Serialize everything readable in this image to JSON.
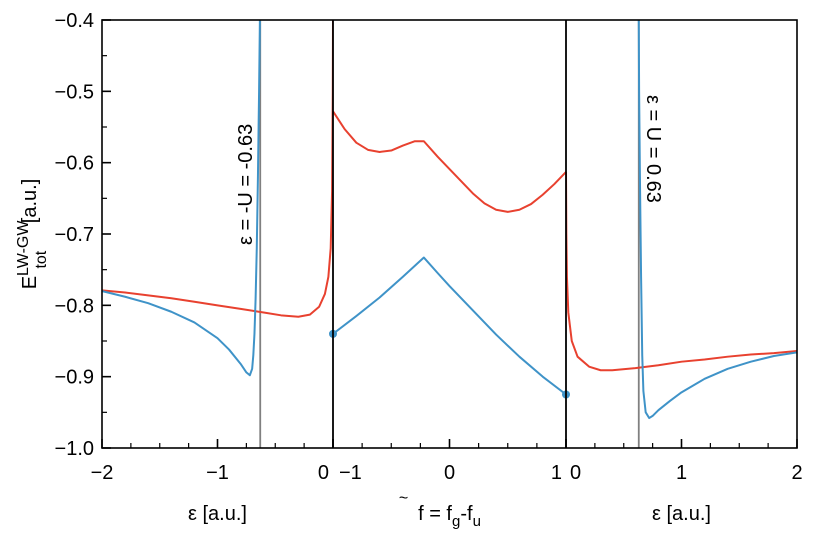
{
  "chart_data": {
    "type": "line",
    "ylabel": {
      "main": "E",
      "sup": "LW-GW",
      "sub": "tot",
      "unit": " [a.u.]"
    },
    "ylim": [
      -1.0,
      -0.4
    ],
    "y_ticks": [
      "−0.4",
      "−0.5",
      "−0.6",
      "−0.7",
      "−0.8",
      "−0.9",
      "−1.0"
    ],
    "y_tick_values": [
      -0.4,
      -0.5,
      -0.6,
      -0.7,
      -0.8,
      -0.9,
      -1.0
    ],
    "grid": false,
    "legend": "none",
    "colors": {
      "red": "#e8412f",
      "blue": "#3f93c8",
      "vline": "#808080",
      "frame": "#000000"
    },
    "panels": [
      {
        "id": "left",
        "xlim": [
          -2,
          0
        ],
        "x_tick_values": [
          -2,
          -1,
          0
        ],
        "x_tick_labels": [
          "−2",
          "−1",
          "0"
        ],
        "xlabel": "ε [a.u.]",
        "vline_x": -0.63,
        "annotation": "ε = -U = -0.63",
        "series": [
          {
            "color": "red",
            "points": [
              [
                -2.0,
                -0.779
              ],
              [
                -1.8,
                -0.782
              ],
              [
                -1.6,
                -0.786
              ],
              [
                -1.4,
                -0.79
              ],
              [
                -1.2,
                -0.795
              ],
              [
                -1.0,
                -0.8
              ],
              [
                -0.8,
                -0.805
              ],
              [
                -0.6,
                -0.81
              ],
              [
                -0.45,
                -0.814
              ],
              [
                -0.3,
                -0.816
              ],
              [
                -0.2,
                -0.813
              ],
              [
                -0.12,
                -0.802
              ],
              [
                -0.07,
                -0.784
              ],
              [
                -0.04,
                -0.76
              ],
              [
                -0.02,
                -0.72
              ],
              [
                -0.008,
                -0.64
              ],
              [
                -0.002,
                -0.5
              ],
              [
                0.0,
                -0.4
              ]
            ]
          },
          {
            "color": "blue",
            "points": [
              [
                -2.0,
                -0.78
              ],
              [
                -1.8,
                -0.788
              ],
              [
                -1.6,
                -0.797
              ],
              [
                -1.4,
                -0.809
              ],
              [
                -1.2,
                -0.824
              ],
              [
                -1.0,
                -0.846
              ],
              [
                -0.9,
                -0.862
              ],
              [
                -0.8,
                -0.882
              ],
              [
                -0.75,
                -0.894
              ],
              [
                -0.72,
                -0.898
              ],
              [
                -0.7,
                -0.889
              ],
              [
                -0.69,
                -0.87
              ],
              [
                -0.68,
                -0.84
              ],
              [
                -0.67,
                -0.79
              ],
              [
                -0.66,
                -0.72
              ],
              [
                -0.65,
                -0.62
              ],
              [
                -0.64,
                -0.5
              ],
              [
                -0.633,
                -0.4
              ]
            ]
          }
        ]
      },
      {
        "id": "middle",
        "xlim": [
          -1,
          1
        ],
        "x_tick_values": [
          -1,
          0,
          1
        ],
        "x_tick_labels": [
          "−1",
          "0",
          "1"
        ],
        "xlabel": {
          "main": "f",
          "accent": "~",
          "eq": " = f",
          "sub1": "g",
          "minus": "-f",
          "sub2": "u"
        },
        "series": [
          {
            "color": "red",
            "points": [
              [
                -1.0,
                -0.528
              ],
              [
                -0.9,
                -0.553
              ],
              [
                -0.8,
                -0.572
              ],
              [
                -0.7,
                -0.582
              ],
              [
                -0.6,
                -0.585
              ],
              [
                -0.5,
                -0.583
              ],
              [
                -0.4,
                -0.576
              ],
              [
                -0.3,
                -0.57
              ],
              [
                -0.22,
                -0.57
              ],
              [
                -0.1,
                -0.592
              ],
              [
                0.0,
                -0.609
              ],
              [
                0.1,
                -0.626
              ],
              [
                0.2,
                -0.643
              ],
              [
                0.3,
                -0.657
              ],
              [
                0.4,
                -0.666
              ],
              [
                0.5,
                -0.669
              ],
              [
                0.6,
                -0.666
              ],
              [
                0.7,
                -0.658
              ],
              [
                0.8,
                -0.645
              ],
              [
                0.9,
                -0.63
              ],
              [
                1.0,
                -0.613
              ]
            ]
          },
          {
            "color": "blue",
            "points": [
              [
                -1.0,
                -0.84
              ],
              [
                -0.8,
                -0.815
              ],
              [
                -0.6,
                -0.789
              ],
              [
                -0.4,
                -0.76
              ],
              [
                -0.22,
                -0.733
              ],
              [
                -0.1,
                -0.755
              ],
              [
                0.0,
                -0.773
              ],
              [
                0.2,
                -0.807
              ],
              [
                0.4,
                -0.841
              ],
              [
                0.6,
                -0.872
              ],
              [
                0.8,
                -0.9
              ],
              [
                1.0,
                -0.925
              ]
            ]
          }
        ],
        "markers": [
          {
            "x": -1.0,
            "y": -0.84,
            "color": "blue"
          },
          {
            "x": 1.0,
            "y": -0.925,
            "color": "blue"
          }
        ]
      },
      {
        "id": "right",
        "xlim": [
          0,
          2
        ],
        "x_tick_values": [
          0,
          1,
          2
        ],
        "x_tick_labels": [
          "0",
          "1",
          "2"
        ],
        "xlabel": "ε [a.u.]",
        "vline_x": 0.63,
        "annotation": "ε = U = 0.63",
        "series": [
          {
            "color": "red",
            "points": [
              [
                0.0,
                -0.613
              ],
              [
                0.003,
                -0.7
              ],
              [
                0.008,
                -0.76
              ],
              [
                0.02,
                -0.81
              ],
              [
                0.05,
                -0.85
              ],
              [
                0.1,
                -0.872
              ],
              [
                0.2,
                -0.886
              ],
              [
                0.3,
                -0.891
              ],
              [
                0.4,
                -0.891
              ],
              [
                0.6,
                -0.888
              ],
              [
                0.8,
                -0.884
              ],
              [
                1.0,
                -0.879
              ],
              [
                1.2,
                -0.876
              ],
              [
                1.4,
                -0.872
              ],
              [
                1.6,
                -0.869
              ],
              [
                1.8,
                -0.867
              ],
              [
                2.0,
                -0.864
              ]
            ]
          },
          {
            "color": "blue",
            "points": [
              [
                0.63,
                -0.4
              ],
              [
                0.633,
                -0.5
              ],
              [
                0.64,
                -0.62
              ],
              [
                0.65,
                -0.76
              ],
              [
                0.66,
                -0.87
              ],
              [
                0.67,
                -0.92
              ],
              [
                0.69,
                -0.95
              ],
              [
                0.72,
                -0.958
              ],
              [
                0.75,
                -0.955
              ],
              [
                0.8,
                -0.947
              ],
              [
                0.9,
                -0.934
              ],
              [
                1.0,
                -0.922
              ],
              [
                1.2,
                -0.903
              ],
              [
                1.4,
                -0.889
              ],
              [
                1.6,
                -0.879
              ],
              [
                1.8,
                -0.871
              ],
              [
                2.0,
                -0.866
              ]
            ]
          }
        ]
      }
    ]
  }
}
